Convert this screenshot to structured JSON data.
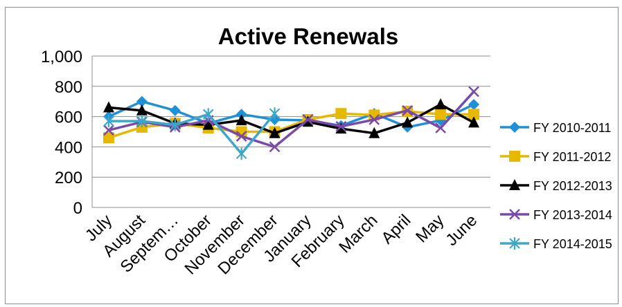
{
  "chart_data": {
    "type": "line",
    "title": "Active Renewals",
    "xlabel": "",
    "ylabel": "",
    "categories": [
      "July",
      "August",
      "Septem…",
      "October",
      "November",
      "December",
      "January",
      "February",
      "March",
      "April",
      "May",
      "June"
    ],
    "ylim": [
      0,
      1000
    ],
    "yticks": [
      0,
      200,
      400,
      600,
      800,
      1000
    ],
    "ytick_labels": [
      "0",
      "200",
      "400",
      "600",
      "800",
      "1,000"
    ],
    "grid": true,
    "legend_position": "right",
    "series": [
      {
        "name": "FY 2010-2011",
        "color": "#1f8fd6",
        "marker": "diamond",
        "values": [
          600,
          700,
          640,
          555,
          615,
          580,
          575,
          540,
          620,
          530,
          575,
          680
        ]
      },
      {
        "name": "FY 2011-2012",
        "color": "#e6b800",
        "marker": "square",
        "values": [
          460,
          530,
          555,
          525,
          500,
          500,
          580,
          620,
          610,
          635,
          615,
          615
        ]
      },
      {
        "name": "FY 2012-2013",
        "color": "#000000",
        "marker": "triangle",
        "values": [
          660,
          640,
          555,
          545,
          575,
          490,
          565,
          520,
          490,
          560,
          680,
          560
        ]
      },
      {
        "name": "FY 2013-2014",
        "color": "#7a4aa8",
        "marker": "x",
        "values": [
          510,
          565,
          530,
          575,
          470,
          400,
          580,
          535,
          580,
          640,
          525,
          765
        ]
      },
      {
        "name": "FY 2014-2015",
        "color": "#3ea7c9",
        "marker": "star",
        "values": [
          570,
          570,
          545,
          615,
          355,
          620,
          null,
          null,
          null,
          null,
          null,
          null
        ]
      }
    ]
  }
}
